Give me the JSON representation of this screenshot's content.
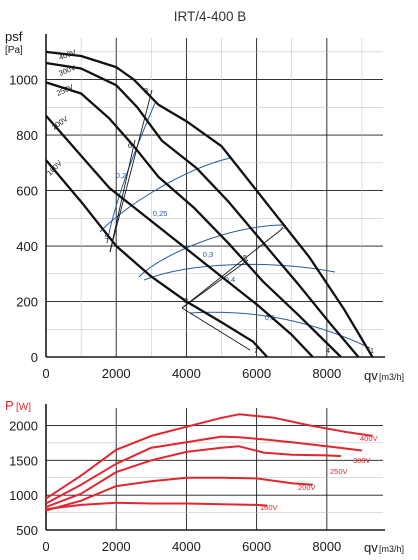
{
  "chart_data": [
    {
      "type": "line",
      "title": "IRT/4-400 B",
      "ylabel": "psf",
      "yunit": "[Pa]",
      "xlabel": "qv",
      "xunit": "[m3/h]",
      "xlim": [
        0,
        9600
      ],
      "ylim": [
        0,
        1150
      ],
      "xticks": [
        "0",
        "2000",
        "4000",
        "6000",
        "8000"
      ],
      "yticks": [
        "0",
        "200",
        "400",
        "600",
        "800",
        "1000"
      ],
      "series": [
        {
          "name": "400V",
          "x": [
            0,
            1000,
            2000,
            2500,
            3200,
            4000,
            5000,
            5500,
            6500,
            7500,
            8500,
            9300
          ],
          "y": [
            1100,
            1085,
            1045,
            1000,
            910,
            850,
            760,
            680,
            520,
            360,
            170,
            0
          ]
        },
        {
          "name": "300V",
          "x": [
            0,
            1000,
            2000,
            2600,
            3300,
            4300,
            5200,
            6200,
            7200,
            8100,
            8900
          ],
          "y": [
            1060,
            1040,
            980,
            900,
            780,
            680,
            560,
            410,
            260,
            120,
            0
          ]
        },
        {
          "name": "250V",
          "x": [
            0,
            1000,
            1800,
            2500,
            3200,
            4200,
            5200,
            6200,
            7200,
            8400
          ],
          "y": [
            990,
            950,
            860,
            760,
            650,
            540,
            410,
            270,
            150,
            0
          ]
        },
        {
          "name": "200V",
          "x": [
            0,
            900,
            1800,
            2800,
            4000,
            5000,
            6000,
            7000,
            7600
          ],
          "y": [
            870,
            740,
            610,
            510,
            390,
            290,
            190,
            80,
            0
          ]
        },
        {
          "name": "160V",
          "x": [
            0,
            1000,
            2000,
            3000,
            4000,
            5000,
            5900,
            6300
          ],
          "y": [
            710,
            560,
            400,
            290,
            200,
            125,
            55,
            0
          ]
        }
      ],
      "efficiency_labels": [
        "0,2",
        "0,25",
        "0,3",
        "0,4",
        "0,5"
      ],
      "point_labels": [
        "1",
        "2",
        "3",
        "4",
        "5",
        "6",
        "7",
        "8",
        "9"
      ]
    },
    {
      "type": "line",
      "ylabel": "P",
      "yunit": "[W]",
      "xlabel": "qv",
      "xunit": "[m3/h]",
      "xlim": [
        0,
        9600
      ],
      "ylim": [
        500,
        2250
      ],
      "xticks": [
        "0",
        "2000",
        "4000",
        "6000",
        "8000"
      ],
      "yticks": [
        "500",
        "1000",
        "1500",
        "2000"
      ],
      "series": [
        {
          "name": "400V",
          "x": [
            0,
            1000,
            2000,
            3000,
            4000,
            5000,
            5500,
            6500,
            7500,
            8500,
            9300
          ],
          "y": [
            950,
            1280,
            1650,
            1850,
            1980,
            2110,
            2160,
            2110,
            2000,
            1910,
            1850
          ]
        },
        {
          "name": "300V",
          "x": [
            0,
            1000,
            2000,
            3000,
            4000,
            5000,
            5500,
            6200,
            7000,
            8000,
            9000
          ],
          "y": [
            880,
            1150,
            1450,
            1680,
            1760,
            1840,
            1830,
            1800,
            1760,
            1700,
            1640
          ]
        },
        {
          "name": "250V",
          "x": [
            0,
            1000,
            2000,
            3000,
            4000,
            5000,
            5500,
            6200,
            7000,
            8000,
            8400
          ],
          "y": [
            830,
            1020,
            1330,
            1500,
            1620,
            1680,
            1700,
            1610,
            1580,
            1570,
            1560
          ]
        },
        {
          "name": "200V",
          "x": [
            0,
            1000,
            2000,
            3000,
            4000,
            5000,
            6000,
            7000,
            7600
          ],
          "y": [
            780,
            920,
            1130,
            1200,
            1250,
            1250,
            1240,
            1170,
            1150
          ]
        },
        {
          "name": "160V",
          "x": [
            0,
            1000,
            2000,
            3000,
            4000,
            5000,
            6000,
            6300
          ],
          "y": [
            800,
            860,
            890,
            880,
            880,
            870,
            860,
            850
          ]
        }
      ]
    }
  ]
}
